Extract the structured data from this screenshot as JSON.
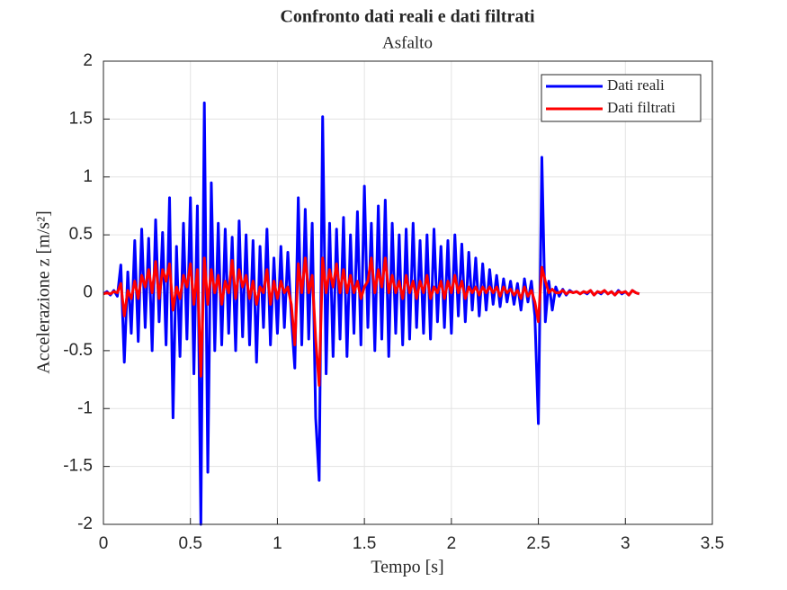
{
  "chart_data": {
    "type": "line",
    "title": "Confronto dati reali e dati filtrati",
    "subtitle": "Asfalto",
    "x_label": "Tempo [s]",
    "y_label": "Accelerazione z [m/s²]",
    "x": [
      0,
      0.02,
      0.04,
      0.06,
      0.08,
      0.1,
      0.12,
      0.14,
      0.16,
      0.18,
      0.2,
      0.22,
      0.24,
      0.26,
      0.28,
      0.3,
      0.32,
      0.34,
      0.36,
      0.38,
      0.4,
      0.42,
      0.44,
      0.46,
      0.48,
      0.5,
      0.52,
      0.54,
      0.56,
      0.58,
      0.6,
      0.62,
      0.64,
      0.66,
      0.68,
      0.7,
      0.72,
      0.74,
      0.76,
      0.78,
      0.8,
      0.82,
      0.84,
      0.86,
      0.88,
      0.9,
      0.92,
      0.94,
      0.96,
      0.98,
      1,
      1.02,
      1.04,
      1.06,
      1.08,
      1.1,
      1.12,
      1.14,
      1.16,
      1.18,
      1.2,
      1.22,
      1.24,
      1.26,
      1.28,
      1.3,
      1.32,
      1.34,
      1.36,
      1.38,
      1.4,
      1.42,
      1.44,
      1.46,
      1.48,
      1.5,
      1.52,
      1.54,
      1.56,
      1.58,
      1.6,
      1.62,
      1.64,
      1.66,
      1.68,
      1.7,
      1.72,
      1.74,
      1.76,
      1.78,
      1.8,
      1.82,
      1.84,
      1.86,
      1.88,
      1.9,
      1.92,
      1.94,
      1.96,
      1.98,
      2,
      2.02,
      2.04,
      2.06,
      2.08,
      2.1,
      2.12,
      2.14,
      2.16,
      2.18,
      2.2,
      2.22,
      2.24,
      2.26,
      2.28,
      2.3,
      2.32,
      2.34,
      2.36,
      2.38,
      2.4,
      2.42,
      2.44,
      2.46,
      2.48,
      2.5,
      2.52,
      2.54,
      2.56,
      2.58,
      2.6,
      2.62,
      2.64,
      2.66,
      2.68,
      2.7,
      2.72,
      2.74,
      2.76,
      2.78,
      2.8,
      2.82,
      2.84,
      2.86,
      2.88,
      2.9,
      2.92,
      2.94,
      2.96,
      2.98,
      3,
      3.02,
      3.04,
      3.06,
      3.08
    ],
    "series": [
      {
        "name": "Dati reali",
        "color": "#0000ff",
        "values": [
          -0.01,
          0.01,
          -0.02,
          0.02,
          -0.03,
          0.24,
          -0.6,
          0.18,
          -0.35,
          0.45,
          -0.42,
          0.55,
          -0.3,
          0.47,
          -0.5,
          0.63,
          -0.25,
          0.52,
          -0.45,
          0.82,
          -1.08,
          0.4,
          -0.55,
          0.6,
          -0.4,
          0.82,
          -0.7,
          0.75,
          -2.0,
          1.64,
          -1.55,
          0.95,
          -0.5,
          0.6,
          -0.45,
          0.55,
          -0.35,
          0.48,
          -0.5,
          0.62,
          -0.38,
          0.5,
          -0.45,
          0.45,
          -0.6,
          0.4,
          -0.3,
          0.55,
          -0.45,
          0.3,
          -0.35,
          0.4,
          -0.3,
          0.35,
          -0.2,
          -0.65,
          0.82,
          -0.45,
          0.72,
          -0.4,
          0.6,
          -1.08,
          -1.62,
          1.52,
          -0.7,
          0.6,
          -0.55,
          0.55,
          -0.4,
          0.65,
          -0.55,
          0.5,
          -0.35,
          0.7,
          -0.45,
          0.92,
          -0.3,
          0.6,
          -0.5,
          0.75,
          -0.4,
          0.8,
          -0.55,
          0.6,
          -0.35,
          0.5,
          -0.45,
          0.55,
          -0.4,
          0.6,
          -0.3,
          0.45,
          -0.35,
          0.5,
          -0.4,
          0.55,
          -0.25,
          0.4,
          -0.3,
          0.45,
          -0.35,
          0.5,
          -0.2,
          0.42,
          -0.25,
          0.35,
          -0.15,
          0.3,
          -0.2,
          0.25,
          -0.15,
          0.2,
          -0.1,
          0.15,
          -0.12,
          0.12,
          -0.08,
          0.1,
          -0.1,
          0.08,
          -0.15,
          0.12,
          -0.08,
          0.1,
          -0.2,
          -1.13,
          1.17,
          -0.25,
          0.1,
          -0.15,
          0.05,
          -0.03,
          0.03,
          -0.02,
          0.02,
          0,
          0.01,
          -0.01,
          0.01,
          -0.01,
          0.02,
          -0.02,
          0.01,
          -0.01,
          0.02,
          -0.01,
          0.01,
          -0.02,
          0.02,
          -0.01,
          0.01,
          -0.02,
          0.02,
          0,
          -0.01
        ]
      },
      {
        "name": "Dati filtrati",
        "color": "#ff0000",
        "values": [
          -0.01,
          0,
          -0.01,
          0.01,
          0,
          0.08,
          -0.2,
          0.02,
          -0.05,
          0.1,
          -0.05,
          0.15,
          0.05,
          0.2,
          0,
          0.27,
          -0.05,
          0.2,
          0.1,
          0.25,
          -0.15,
          0.05,
          -0.05,
          0.15,
          0.05,
          0.25,
          -0.1,
          0.2,
          -0.72,
          0.3,
          -0.1,
          0.2,
          0,
          0.15,
          -0.1,
          0.1,
          0,
          0.28,
          -0.05,
          0.2,
          0.05,
          0.15,
          -0.05,
          0.1,
          -0.1,
          0.05,
          0,
          0.2,
          -0.1,
          0.1,
          -0.05,
          0.1,
          0,
          0.05,
          -0.1,
          -0.45,
          0.25,
          0,
          0.3,
          0,
          0.15,
          -0.4,
          -0.8,
          0.3,
          0,
          0.2,
          0.05,
          0.25,
          0,
          0.2,
          0,
          0.15,
          0,
          0.1,
          -0.05,
          0.05,
          0.1,
          0.3,
          0,
          0.2,
          0.05,
          0.3,
          0,
          0.15,
          0,
          0.1,
          -0.05,
          0.15,
          0,
          0.1,
          -0.05,
          0.1,
          0,
          0.15,
          -0.05,
          0.05,
          0,
          0.1,
          -0.05,
          0.1,
          0,
          0.15,
          0,
          0.1,
          -0.05,
          0.05,
          0,
          0.05,
          -0.02,
          0.05,
          0,
          0.05,
          0,
          0.05,
          -0.03,
          0.05,
          0,
          0.03,
          -0.02,
          0.02,
          -0.05,
          0.05,
          -0.03,
          0.02,
          -0.08,
          -0.25,
          0.22,
          0.1,
          0,
          0.03,
          0,
          0,
          0.02,
          -0.01,
          0.01,
          0,
          0.01,
          -0.01,
          0.01,
          0,
          0.02,
          -0.02,
          0.01,
          0,
          0.02,
          -0.01,
          0.01,
          -0.02,
          0.01,
          0,
          0.01,
          -0.02,
          0.02,
          0,
          -0.01
        ]
      }
    ],
    "xlim": [
      0,
      3.5
    ],
    "xticks": [
      0,
      0.5,
      1,
      1.5,
      2,
      2.5,
      3,
      3.5
    ],
    "ylim": [
      -2,
      2
    ],
    "yticks": [
      -2,
      -1.5,
      -1,
      -0.5,
      0,
      0.5,
      1,
      1.5,
      2
    ],
    "grid": true,
    "legend": "northeast"
  }
}
